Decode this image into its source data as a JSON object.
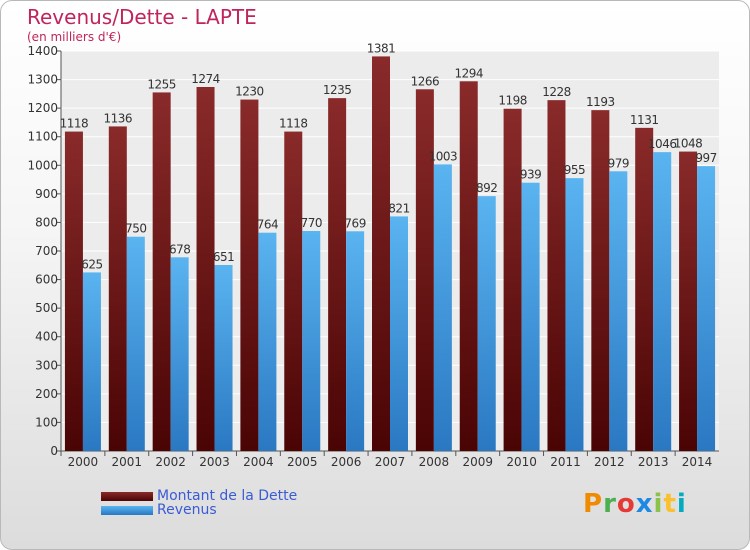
{
  "chart_data": {
    "type": "bar",
    "title": "Revenus/Dette - LAPTE",
    "subtitle": "(en milliers d'€)",
    "categories": [
      "2000",
      "2001",
      "2002",
      "2003",
      "2004",
      "2005",
      "2006",
      "2007",
      "2008",
      "2009",
      "2010",
      "2011",
      "2012",
      "2013",
      "2014"
    ],
    "series": [
      {
        "name": "Montant de la Dette",
        "color": "#7a1f1f",
        "values": [
          1118,
          1136,
          1255,
          1274,
          1230,
          1118,
          1235,
          1381,
          1266,
          1294,
          1198,
          1228,
          1193,
          1131,
          1048
        ]
      },
      {
        "name": "Revenus",
        "color": "#4ea8e8",
        "values": [
          625,
          750,
          678,
          651,
          764,
          770,
          769,
          821,
          1003,
          892,
          939,
          955,
          979,
          1046,
          997
        ]
      }
    ],
    "ylim": [
      0,
      1400
    ],
    "yticks": [
      0,
      100,
      200,
      300,
      400,
      500,
      600,
      700,
      800,
      900,
      1000,
      1100,
      1200,
      1300,
      1400
    ],
    "grid": true,
    "legend_position": "bottom-left"
  },
  "logo": {
    "text": "Proxiti",
    "colors": [
      "#f08a00",
      "#4caf50",
      "#e53935",
      "#1e88e5",
      "#8bc34a",
      "#fbc02d",
      "#00acc1"
    ]
  }
}
